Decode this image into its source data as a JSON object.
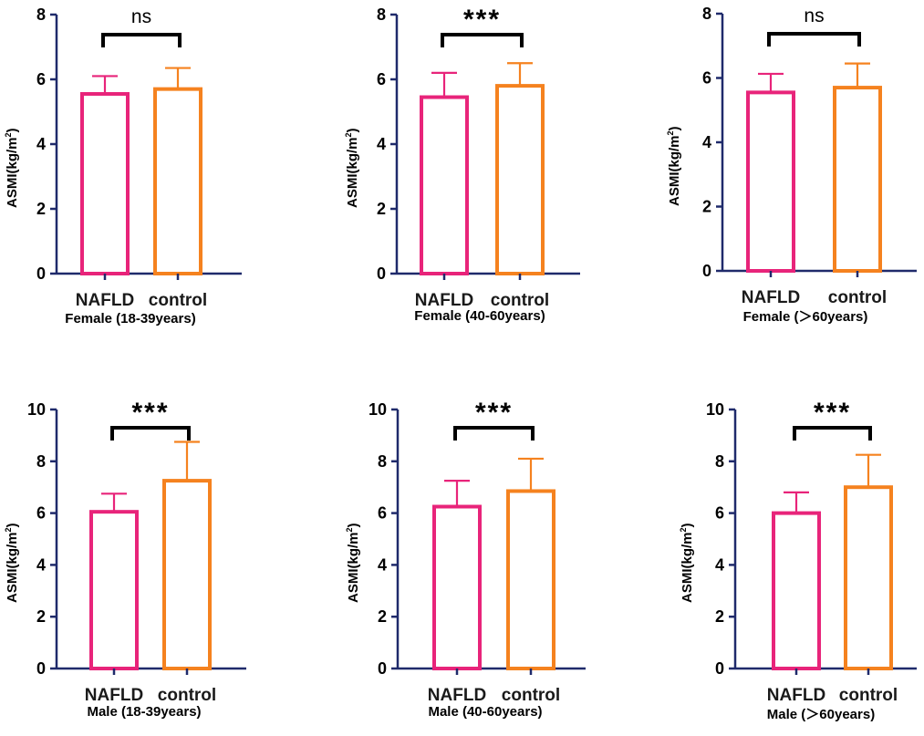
{
  "colors": {
    "nafld": "#e8247a",
    "control": "#f5821f",
    "axis": "#1f2a6b",
    "bracket": "#000000"
  },
  "chart_data": [
    {
      "type": "bar",
      "categories": [
        "NAFLD",
        "control"
      ],
      "values": [
        5.55,
        5.7
      ],
      "errors": [
        0.55,
        0.65
      ],
      "ylim": [
        0,
        8
      ],
      "ticks": [
        0,
        2,
        4,
        6,
        8
      ],
      "ylabel_main": "ASMI",
      "ylabel_unit_pre": "(kg/m",
      "ylabel_sup": "2",
      "ylabel_unit_post": ")",
      "xtitle": "Female (18-39years)",
      "significance": "ns"
    },
    {
      "type": "bar",
      "categories": [
        "NAFLD",
        "control"
      ],
      "values": [
        5.45,
        5.8
      ],
      "errors": [
        0.75,
        0.7
      ],
      "ylim": [
        0,
        8
      ],
      "ticks": [
        0,
        2,
        4,
        6,
        8
      ],
      "ylabel_main": "ASMI",
      "ylabel_unit_pre": "(kg/m",
      "ylabel_sup": "2",
      "ylabel_unit_post": ")",
      "xtitle": "Female (40-60years)",
      "significance": "***"
    },
    {
      "type": "bar",
      "categories": [
        "NAFLD",
        "control"
      ],
      "values": [
        5.55,
        5.7
      ],
      "errors": [
        0.58,
        0.75
      ],
      "ylim": [
        0,
        8
      ],
      "ticks": [
        0,
        2,
        4,
        6,
        8
      ],
      "ylabel_main": "ASMI",
      "ylabel_unit_pre": "(kg/m",
      "ylabel_sup": "2",
      "ylabel_unit_post": ")",
      "xtitle": "Female (＞60years)",
      "significance": "ns"
    },
    {
      "type": "bar",
      "categories": [
        "NAFLD",
        "control"
      ],
      "values": [
        6.05,
        7.25
      ],
      "errors": [
        0.7,
        1.5
      ],
      "ylim": [
        0,
        10
      ],
      "ticks": [
        0,
        2,
        4,
        6,
        8,
        10
      ],
      "ylabel_main": "ASMI",
      "ylabel_unit_pre": "(kg/m",
      "ylabel_sup": "2",
      "ylabel_unit_post": ")",
      "xtitle": "Male (18-39years)",
      "significance": "***"
    },
    {
      "type": "bar",
      "categories": [
        "NAFLD",
        "control"
      ],
      "values": [
        6.25,
        6.85
      ],
      "errors": [
        1.0,
        1.25
      ],
      "ylim": [
        0,
        10
      ],
      "ticks": [
        0,
        2,
        4,
        6,
        8,
        10
      ],
      "ylabel_main": "ASMI",
      "ylabel_unit_pre": "(kg/m",
      "ylabel_sup": "2",
      "ylabel_unit_post": ")",
      "xtitle": "Male (40-60years)",
      "significance": "***"
    },
    {
      "type": "bar",
      "categories": [
        "NAFLD",
        "control"
      ],
      "values": [
        6.0,
        7.0
      ],
      "errors": [
        0.8,
        1.25
      ],
      "ylim": [
        0,
        10
      ],
      "ticks": [
        0,
        2,
        4,
        6,
        8,
        10
      ],
      "ylabel_main": "ASMI",
      "ylabel_unit_pre": "(kg/m",
      "ylabel_sup": "2",
      "ylabel_unit_post": ")",
      "xtitle": "Male (＞60years)",
      "significance": "***"
    }
  ]
}
